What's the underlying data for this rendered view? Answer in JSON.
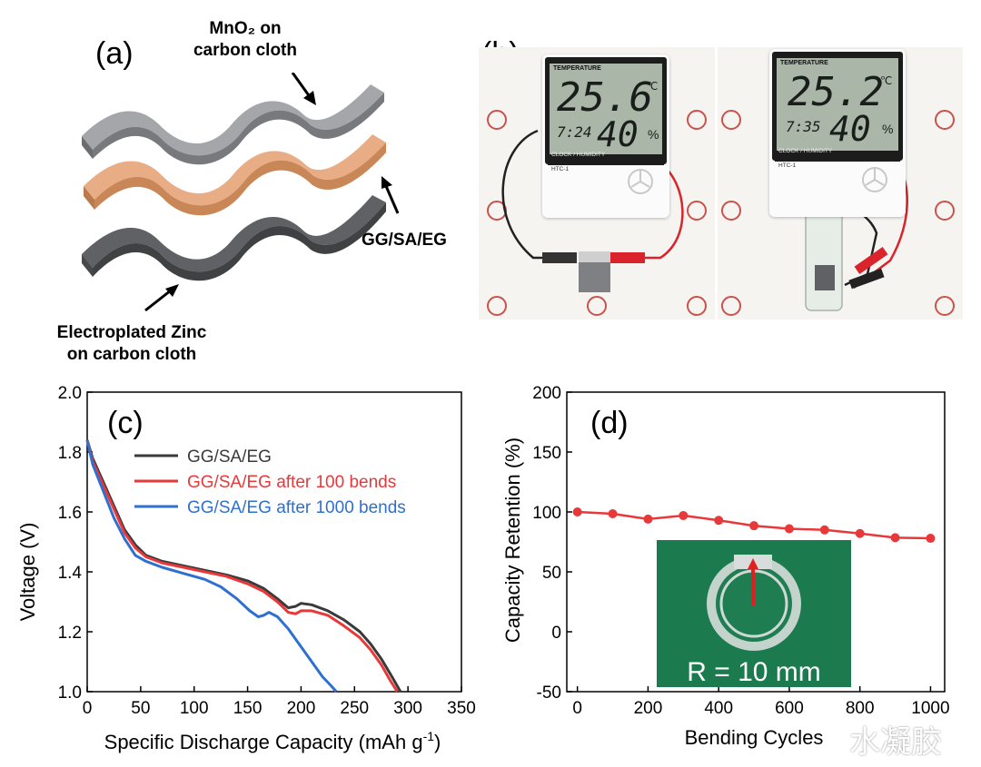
{
  "panel_a": {
    "label": "(a)",
    "cathode_label_line1": "MnO₂ on",
    "cathode_label_line2": "carbon cloth",
    "electrolyte_label": "GG/SA/EG",
    "anode_label_line1": "Electroplated Zinc",
    "anode_label_line2": "on carbon cloth",
    "colors": {
      "carbon_top": "#8f9194",
      "electrolyte": "#e8a77c",
      "carbon_bottom": "#6d6f72"
    }
  },
  "panel_b": {
    "label": "(b)",
    "left_meter": {
      "header": "TEMPERATURE",
      "temperature": "25.6",
      "temp_unit": "℃",
      "time": "7:24",
      "humidity": "40",
      "hum_unit": "%",
      "footer": "CLOCK / HUMIDITY",
      "model": "HTC-1"
    },
    "right_meter": {
      "header": "TEMPERATURE",
      "temperature": "25.2",
      "temp_unit": "℃",
      "time": "7:35",
      "humidity": "40",
      "hum_unit": "%",
      "footer": "CLOCK / HUMIDITY",
      "model": "HTC-1"
    }
  },
  "chart_data": [
    {
      "panel": "(c)",
      "type": "line",
      "xlabel": "Specific Discharge Capacity (mAh g",
      "xlabel_sup": "-1",
      "xlabel_end": ")",
      "ylabel": "Voltage (V)",
      "xlim": [
        0,
        350
      ],
      "ylim": [
        1.0,
        2.0
      ],
      "xticks": [
        0,
        50,
        100,
        150,
        200,
        250,
        300,
        350
      ],
      "yticks": [
        1.0,
        1.2,
        1.4,
        1.6,
        1.8,
        2.0
      ],
      "legend_position": "top-right",
      "series": [
        {
          "name": "GG/SA/EG",
          "color": "#3a3a3a",
          "x": [
            0,
            5,
            15,
            25,
            35,
            45,
            55,
            70,
            90,
            110,
            130,
            150,
            165,
            178,
            188,
            195,
            200,
            210,
            225,
            240,
            255,
            265,
            275,
            285,
            293
          ],
          "y": [
            1.84,
            1.78,
            1.7,
            1.62,
            1.54,
            1.49,
            1.455,
            1.435,
            1.42,
            1.405,
            1.39,
            1.37,
            1.345,
            1.31,
            1.28,
            1.285,
            1.295,
            1.29,
            1.27,
            1.24,
            1.2,
            1.16,
            1.11,
            1.05,
            1.0
          ]
        },
        {
          "name": "GG/SA/EG after 100 bends",
          "color": "#e8383a",
          "x": [
            0,
            5,
            15,
            25,
            35,
            45,
            55,
            70,
            90,
            110,
            130,
            150,
            165,
            178,
            188,
            195,
            200,
            210,
            225,
            240,
            255,
            265,
            275,
            283,
            290
          ],
          "y": [
            1.84,
            1.77,
            1.69,
            1.61,
            1.53,
            1.48,
            1.45,
            1.43,
            1.415,
            1.4,
            1.385,
            1.36,
            1.335,
            1.3,
            1.265,
            1.26,
            1.27,
            1.27,
            1.255,
            1.22,
            1.18,
            1.14,
            1.09,
            1.04,
            1.0
          ]
        },
        {
          "name": "GG/SA/EG after 1000 bends",
          "color": "#2f6fd0",
          "x": [
            0,
            5,
            15,
            25,
            35,
            45,
            55,
            70,
            90,
            110,
            125,
            140,
            152,
            160,
            165,
            170,
            178,
            188,
            200,
            210,
            220,
            228,
            233
          ],
          "y": [
            1.84,
            1.76,
            1.67,
            1.58,
            1.51,
            1.455,
            1.435,
            1.415,
            1.395,
            1.375,
            1.35,
            1.31,
            1.27,
            1.25,
            1.255,
            1.265,
            1.25,
            1.21,
            1.15,
            1.1,
            1.05,
            1.02,
            1.0
          ]
        }
      ]
    },
    {
      "panel": "(d)",
      "type": "line",
      "xlabel": "Bending Cycles",
      "ylabel": "Capacity Retention (%)",
      "xlim": [
        -30,
        1040
      ],
      "ylim": [
        -50,
        200
      ],
      "xticks": [
        0,
        200,
        400,
        600,
        800,
        1000
      ],
      "yticks": [
        -50,
        0,
        50,
        100,
        150,
        200
      ],
      "series": [
        {
          "color": "#e8383a",
          "x": [
            0,
            100,
            200,
            300,
            400,
            500,
            600,
            700,
            800,
            900,
            1000
          ],
          "y": [
            100,
            98.5,
            94,
            97,
            93,
            88.5,
            86,
            85,
            82,
            78.5,
            78
          ]
        }
      ],
      "inset_text": "R = 10 mm"
    }
  ],
  "watermark": "水凝胶"
}
